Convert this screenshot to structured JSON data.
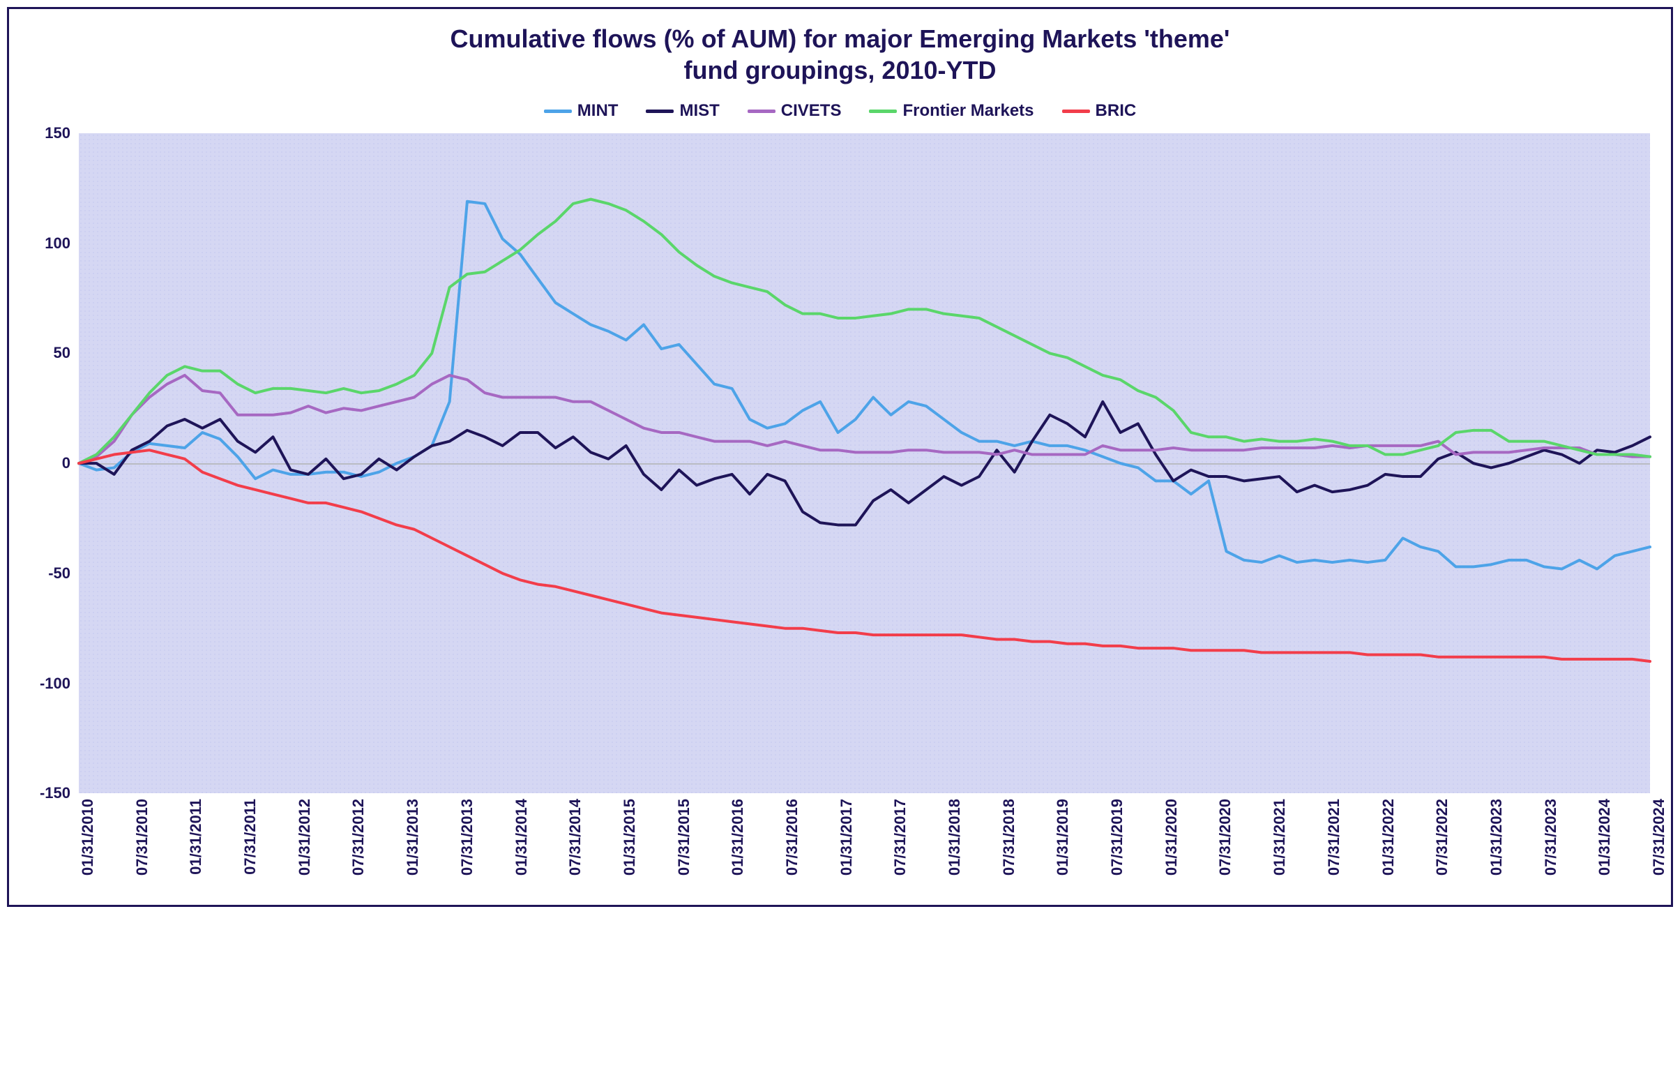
{
  "title_line1": "Cumulative flows (% of AUM) for major Emerging Markets 'theme'",
  "title_line2": "fund groupings, 2010-YTD",
  "title_fontsize": 36,
  "title_color": "#1e1458",
  "legend_fontsize": 24,
  "axis_fontsize": 22,
  "axis_text_color": "#1e1458",
  "frame_border_color": "#1e1458",
  "plot_background_fill": "#b4b8ea",
  "plot_background_dot": "#9ea4e4",
  "zero_line_color": "#b9bbc2",
  "zero_line_width": 2,
  "chart": {
    "type": "line",
    "aspect_height_ratio": 0.42,
    "ylim": [
      -150,
      150
    ],
    "yticks": [
      -150,
      -100,
      -50,
      0,
      50,
      100,
      150
    ],
    "line_width": 4,
    "x_labels": [
      "01/31/2010",
      "07/31/2010",
      "01/31/2011",
      "07/31/2011",
      "01/31/2012",
      "07/31/2012",
      "01/31/2013",
      "07/31/2013",
      "01/31/2014",
      "07/31/2014",
      "01/31/2015",
      "07/31/2015",
      "01/31/2016",
      "07/31/2016",
      "01/31/2017",
      "07/31/2017",
      "01/31/2018",
      "07/31/2018",
      "01/31/2019",
      "07/31/2019",
      "01/31/2020",
      "07/31/2020",
      "01/31/2021",
      "07/31/2021",
      "01/31/2022",
      "07/31/2022",
      "01/31/2023",
      "07/31/2023",
      "01/31/2024",
      "07/31/2024"
    ],
    "n_points": 90,
    "series": [
      {
        "name": "MINT",
        "color": "#4da3e8",
        "values": [
          0,
          -3,
          -2,
          5,
          9,
          8,
          7,
          14,
          11,
          3,
          -7,
          -3,
          -5,
          -5,
          -4,
          -4,
          -6,
          -4,
          0,
          3,
          8,
          28,
          119,
          118,
          102,
          95,
          84,
          73,
          68,
          63,
          60,
          56,
          63,
          52,
          54,
          45,
          36,
          34,
          20,
          16,
          18,
          24,
          28,
          14,
          20,
          30,
          22,
          28,
          26,
          20,
          14,
          10,
          10,
          8,
          10,
          8,
          8,
          6,
          3,
          0,
          -2,
          -8,
          -8,
          -14,
          -8,
          -40,
          -44,
          -45,
          -42,
          -45,
          -44,
          -45,
          -44,
          -45,
          -44,
          -34,
          -38,
          -40,
          -47,
          -47,
          -46,
          -44,
          -44,
          -47,
          -48,
          -44,
          -48,
          -42,
          -40,
          -38
        ]
      },
      {
        "name": "MIST",
        "color": "#1e1458",
        "values": [
          0,
          0,
          -5,
          6,
          10,
          17,
          20,
          16,
          20,
          10,
          5,
          12,
          -3,
          -5,
          2,
          -7,
          -5,
          2,
          -3,
          3,
          8,
          10,
          15,
          12,
          8,
          14,
          14,
          7,
          12,
          5,
          2,
          8,
          -5,
          -12,
          -3,
          -10,
          -7,
          -5,
          -14,
          -5,
          -8,
          -22,
          -27,
          -28,
          -28,
          -17,
          -12,
          -18,
          -12,
          -6,
          -10,
          -6,
          6,
          -4,
          10,
          22,
          18,
          12,
          28,
          14,
          18,
          4,
          -8,
          -3,
          -6,
          -6,
          -8,
          -7,
          -6,
          -13,
          -10,
          -13,
          -12,
          -10,
          -5,
          -6,
          -6,
          2,
          5,
          0,
          -2,
          0,
          3,
          6,
          4,
          0,
          6,
          5,
          8,
          12
        ]
      },
      {
        "name": "CIVETS",
        "color": "#a668c2",
        "values": [
          0,
          3,
          10,
          22,
          30,
          36,
          40,
          33,
          32,
          22,
          22,
          22,
          23,
          26,
          23,
          25,
          24,
          26,
          28,
          30,
          36,
          40,
          38,
          32,
          30,
          30,
          30,
          30,
          28,
          28,
          24,
          20,
          16,
          14,
          14,
          12,
          10,
          10,
          10,
          8,
          10,
          8,
          6,
          6,
          5,
          5,
          5,
          6,
          6,
          5,
          5,
          5,
          4,
          6,
          4,
          4,
          4,
          4,
          8,
          6,
          6,
          6,
          7,
          6,
          6,
          6,
          6,
          7,
          7,
          7,
          7,
          8,
          7,
          8,
          8,
          8,
          8,
          10,
          4,
          5,
          5,
          5,
          6,
          7,
          7,
          7,
          4,
          4,
          3,
          3
        ]
      },
      {
        "name": "Frontier Markets",
        "color": "#5ad66a",
        "values": [
          0,
          4,
          12,
          22,
          32,
          40,
          44,
          42,
          42,
          36,
          32,
          34,
          34,
          33,
          32,
          34,
          32,
          33,
          36,
          40,
          50,
          80,
          86,
          87,
          92,
          97,
          104,
          110,
          118,
          120,
          118,
          115,
          110,
          104,
          96,
          90,
          85,
          82,
          80,
          78,
          72,
          68,
          68,
          66,
          66,
          67,
          68,
          70,
          70,
          68,
          67,
          66,
          62,
          58,
          54,
          50,
          48,
          44,
          40,
          38,
          33,
          30,
          24,
          14,
          12,
          12,
          10,
          11,
          10,
          10,
          11,
          10,
          8,
          8,
          4,
          4,
          6,
          8,
          14,
          15,
          15,
          10,
          10,
          10,
          8,
          6,
          4,
          4,
          4,
          3
        ]
      },
      {
        "name": "BRIC",
        "color": "#f23d4a",
        "values": [
          0,
          2,
          4,
          5,
          6,
          4,
          2,
          -4,
          -7,
          -10,
          -12,
          -14,
          -16,
          -18,
          -18,
          -20,
          -22,
          -25,
          -28,
          -30,
          -34,
          -38,
          -42,
          -46,
          -50,
          -53,
          -55,
          -56,
          -58,
          -60,
          -62,
          -64,
          -66,
          -68,
          -69,
          -70,
          -71,
          -72,
          -73,
          -74,
          -75,
          -75,
          -76,
          -77,
          -77,
          -78,
          -78,
          -78,
          -78,
          -78,
          -78,
          -79,
          -80,
          -80,
          -81,
          -81,
          -82,
          -82,
          -83,
          -83,
          -84,
          -84,
          -84,
          -85,
          -85,
          -85,
          -85,
          -86,
          -86,
          -86,
          -86,
          -86,
          -86,
          -87,
          -87,
          -87,
          -87,
          -88,
          -88,
          -88,
          -88,
          -88,
          -88,
          -88,
          -89,
          -89,
          -89,
          -89,
          -89,
          -90
        ]
      }
    ]
  }
}
